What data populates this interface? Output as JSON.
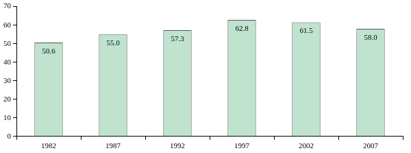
{
  "chart_data": {
    "type": "bar",
    "categories": [
      "1982",
      "1987",
      "1992",
      "1997",
      "2002",
      "2007"
    ],
    "values": [
      50.6,
      55.0,
      57.3,
      62.8,
      61.5,
      58.0
    ],
    "value_labels": [
      "50.6",
      "55.0",
      "57.3",
      "62.8",
      "61.5",
      "58.0"
    ],
    "color": "#bfe3cf",
    "ylim": [
      0,
      70
    ],
    "yticks": [
      0,
      10,
      20,
      30,
      40,
      50,
      60,
      70
    ],
    "grid": false,
    "data_labels": true
  }
}
